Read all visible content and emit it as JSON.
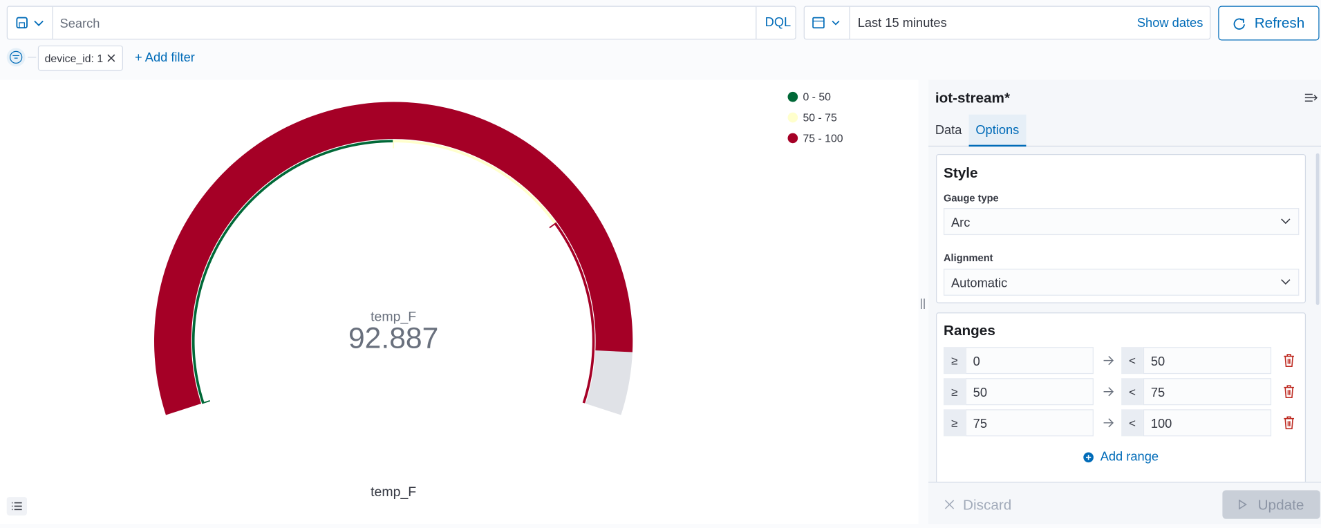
{
  "query_bar": {
    "search_placeholder": "Search",
    "language": "DQL",
    "time_range": "Last 15 minutes",
    "show_dates": "Show dates",
    "refresh": "Refresh"
  },
  "filters": {
    "items": [
      "device_id: 1"
    ],
    "add_filter": "+ Add filter"
  },
  "visualization": {
    "gauge": {
      "metric_label": "temp_F",
      "value": 92.887,
      "x_axis_label": "temp_F",
      "legend": [
        "0 - 50",
        "50 - 75",
        "75 - 100"
      ],
      "colors": [
        "#006837",
        "#ffffcc",
        "#a50026"
      ]
    }
  },
  "editor": {
    "index_pattern": "iot-stream*",
    "tabs": [
      "Data",
      "Options"
    ],
    "active_tab": 1,
    "style": {
      "title": "Style",
      "gauge_type_label": "Gauge type",
      "gauge_type": "Arc",
      "alignment_label": "Alignment",
      "alignment": "Automatic"
    },
    "ranges": {
      "title": "Ranges",
      "from_symbol": "≥",
      "to_symbol": "<",
      "rows": [
        {
          "from": 0,
          "to": 50
        },
        {
          "from": 50,
          "to": 75
        },
        {
          "from": 75,
          "to": 100
        }
      ],
      "add": "Add range"
    },
    "discard": "Discard",
    "update": "Update"
  }
}
